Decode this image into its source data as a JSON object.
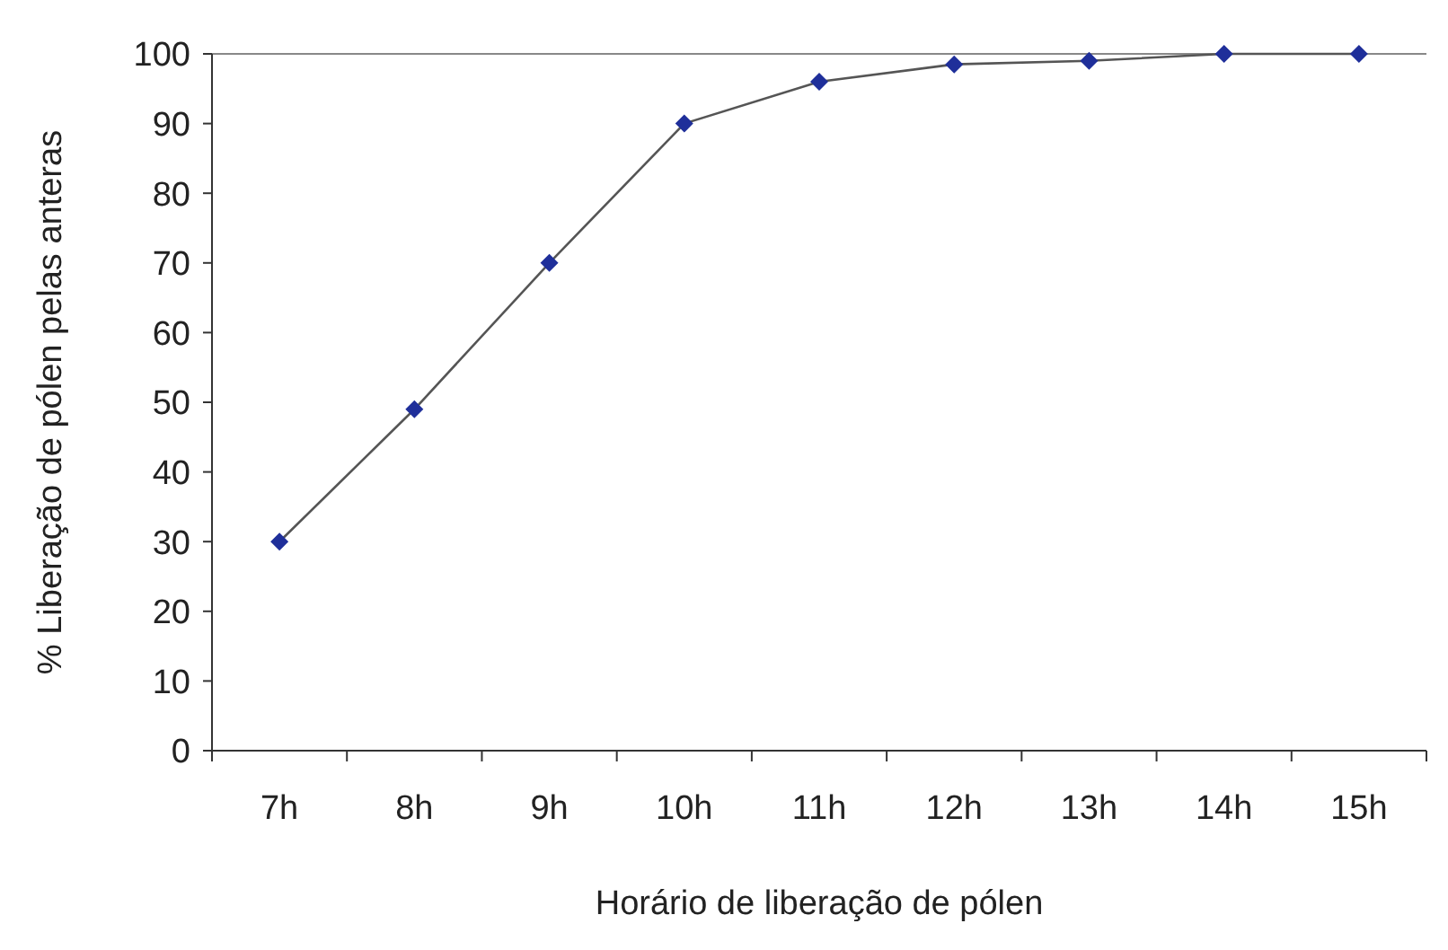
{
  "chart_data": {
    "type": "line",
    "xlabel": "Horário de liberação de pólen",
    "ylabel": "% Liberação de pólen pelas anteras",
    "categories": [
      "7h",
      "8h",
      "9h",
      "10h",
      "11h",
      "12h",
      "13h",
      "14h",
      "15h"
    ],
    "series": [
      {
        "color": "#1f2f9a",
        "values": [
          30,
          49,
          70,
          90,
          96,
          98.5,
          99,
          100,
          100
        ]
      }
    ],
    "ylim": [
      0,
      100
    ],
    "yticks": [
      0,
      10,
      20,
      30,
      40,
      50,
      60,
      70,
      80,
      90,
      100
    ],
    "ref_lines": [
      {
        "axis": "y",
        "value": 100,
        "color": "#888888"
      }
    ],
    "marker": "diamond",
    "line_style": "solid",
    "grid": false
  }
}
